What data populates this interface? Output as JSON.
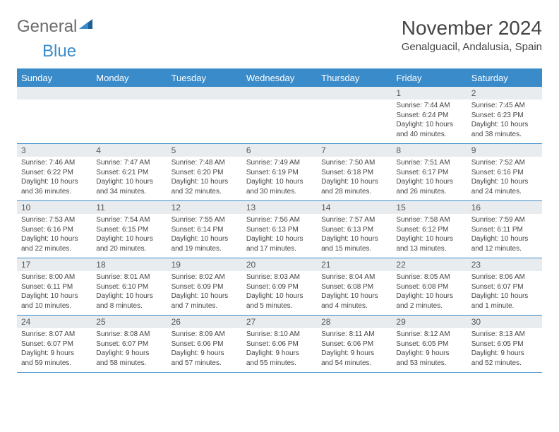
{
  "logo": {
    "word1": "General",
    "word2": "Blue"
  },
  "title": "November 2024",
  "subtitle": "Genalguacil, Andalusia, Spain",
  "colors": {
    "accent": "#3a8bc9",
    "header_bg": "#3a8bc9",
    "header_fg": "#ffffff",
    "daynum_bg": "#e9ecef",
    "text": "#444444",
    "logo_gray": "#6b6b6b",
    "background": "#ffffff"
  },
  "weekdays": [
    "Sunday",
    "Monday",
    "Tuesday",
    "Wednesday",
    "Thursday",
    "Friday",
    "Saturday"
  ],
  "weeks": [
    [
      {
        "num": "",
        "sunrise": "",
        "sunset": "",
        "daylight": ""
      },
      {
        "num": "",
        "sunrise": "",
        "sunset": "",
        "daylight": ""
      },
      {
        "num": "",
        "sunrise": "",
        "sunset": "",
        "daylight": ""
      },
      {
        "num": "",
        "sunrise": "",
        "sunset": "",
        "daylight": ""
      },
      {
        "num": "",
        "sunrise": "",
        "sunset": "",
        "daylight": ""
      },
      {
        "num": "1",
        "sunrise": "Sunrise: 7:44 AM",
        "sunset": "Sunset: 6:24 PM",
        "daylight": "Daylight: 10 hours and 40 minutes."
      },
      {
        "num": "2",
        "sunrise": "Sunrise: 7:45 AM",
        "sunset": "Sunset: 6:23 PM",
        "daylight": "Daylight: 10 hours and 38 minutes."
      }
    ],
    [
      {
        "num": "3",
        "sunrise": "Sunrise: 7:46 AM",
        "sunset": "Sunset: 6:22 PM",
        "daylight": "Daylight: 10 hours and 36 minutes."
      },
      {
        "num": "4",
        "sunrise": "Sunrise: 7:47 AM",
        "sunset": "Sunset: 6:21 PM",
        "daylight": "Daylight: 10 hours and 34 minutes."
      },
      {
        "num": "5",
        "sunrise": "Sunrise: 7:48 AM",
        "sunset": "Sunset: 6:20 PM",
        "daylight": "Daylight: 10 hours and 32 minutes."
      },
      {
        "num": "6",
        "sunrise": "Sunrise: 7:49 AM",
        "sunset": "Sunset: 6:19 PM",
        "daylight": "Daylight: 10 hours and 30 minutes."
      },
      {
        "num": "7",
        "sunrise": "Sunrise: 7:50 AM",
        "sunset": "Sunset: 6:18 PM",
        "daylight": "Daylight: 10 hours and 28 minutes."
      },
      {
        "num": "8",
        "sunrise": "Sunrise: 7:51 AM",
        "sunset": "Sunset: 6:17 PM",
        "daylight": "Daylight: 10 hours and 26 minutes."
      },
      {
        "num": "9",
        "sunrise": "Sunrise: 7:52 AM",
        "sunset": "Sunset: 6:16 PM",
        "daylight": "Daylight: 10 hours and 24 minutes."
      }
    ],
    [
      {
        "num": "10",
        "sunrise": "Sunrise: 7:53 AM",
        "sunset": "Sunset: 6:16 PM",
        "daylight": "Daylight: 10 hours and 22 minutes."
      },
      {
        "num": "11",
        "sunrise": "Sunrise: 7:54 AM",
        "sunset": "Sunset: 6:15 PM",
        "daylight": "Daylight: 10 hours and 20 minutes."
      },
      {
        "num": "12",
        "sunrise": "Sunrise: 7:55 AM",
        "sunset": "Sunset: 6:14 PM",
        "daylight": "Daylight: 10 hours and 19 minutes."
      },
      {
        "num": "13",
        "sunrise": "Sunrise: 7:56 AM",
        "sunset": "Sunset: 6:13 PM",
        "daylight": "Daylight: 10 hours and 17 minutes."
      },
      {
        "num": "14",
        "sunrise": "Sunrise: 7:57 AM",
        "sunset": "Sunset: 6:13 PM",
        "daylight": "Daylight: 10 hours and 15 minutes."
      },
      {
        "num": "15",
        "sunrise": "Sunrise: 7:58 AM",
        "sunset": "Sunset: 6:12 PM",
        "daylight": "Daylight: 10 hours and 13 minutes."
      },
      {
        "num": "16",
        "sunrise": "Sunrise: 7:59 AM",
        "sunset": "Sunset: 6:11 PM",
        "daylight": "Daylight: 10 hours and 12 minutes."
      }
    ],
    [
      {
        "num": "17",
        "sunrise": "Sunrise: 8:00 AM",
        "sunset": "Sunset: 6:11 PM",
        "daylight": "Daylight: 10 hours and 10 minutes."
      },
      {
        "num": "18",
        "sunrise": "Sunrise: 8:01 AM",
        "sunset": "Sunset: 6:10 PM",
        "daylight": "Daylight: 10 hours and 8 minutes."
      },
      {
        "num": "19",
        "sunrise": "Sunrise: 8:02 AM",
        "sunset": "Sunset: 6:09 PM",
        "daylight": "Daylight: 10 hours and 7 minutes."
      },
      {
        "num": "20",
        "sunrise": "Sunrise: 8:03 AM",
        "sunset": "Sunset: 6:09 PM",
        "daylight": "Daylight: 10 hours and 5 minutes."
      },
      {
        "num": "21",
        "sunrise": "Sunrise: 8:04 AM",
        "sunset": "Sunset: 6:08 PM",
        "daylight": "Daylight: 10 hours and 4 minutes."
      },
      {
        "num": "22",
        "sunrise": "Sunrise: 8:05 AM",
        "sunset": "Sunset: 6:08 PM",
        "daylight": "Daylight: 10 hours and 2 minutes."
      },
      {
        "num": "23",
        "sunrise": "Sunrise: 8:06 AM",
        "sunset": "Sunset: 6:07 PM",
        "daylight": "Daylight: 10 hours and 1 minute."
      }
    ],
    [
      {
        "num": "24",
        "sunrise": "Sunrise: 8:07 AM",
        "sunset": "Sunset: 6:07 PM",
        "daylight": "Daylight: 9 hours and 59 minutes."
      },
      {
        "num": "25",
        "sunrise": "Sunrise: 8:08 AM",
        "sunset": "Sunset: 6:07 PM",
        "daylight": "Daylight: 9 hours and 58 minutes."
      },
      {
        "num": "26",
        "sunrise": "Sunrise: 8:09 AM",
        "sunset": "Sunset: 6:06 PM",
        "daylight": "Daylight: 9 hours and 57 minutes."
      },
      {
        "num": "27",
        "sunrise": "Sunrise: 8:10 AM",
        "sunset": "Sunset: 6:06 PM",
        "daylight": "Daylight: 9 hours and 55 minutes."
      },
      {
        "num": "28",
        "sunrise": "Sunrise: 8:11 AM",
        "sunset": "Sunset: 6:06 PM",
        "daylight": "Daylight: 9 hours and 54 minutes."
      },
      {
        "num": "29",
        "sunrise": "Sunrise: 8:12 AM",
        "sunset": "Sunset: 6:05 PM",
        "daylight": "Daylight: 9 hours and 53 minutes."
      },
      {
        "num": "30",
        "sunrise": "Sunrise: 8:13 AM",
        "sunset": "Sunset: 6:05 PM",
        "daylight": "Daylight: 9 hours and 52 minutes."
      }
    ]
  ]
}
